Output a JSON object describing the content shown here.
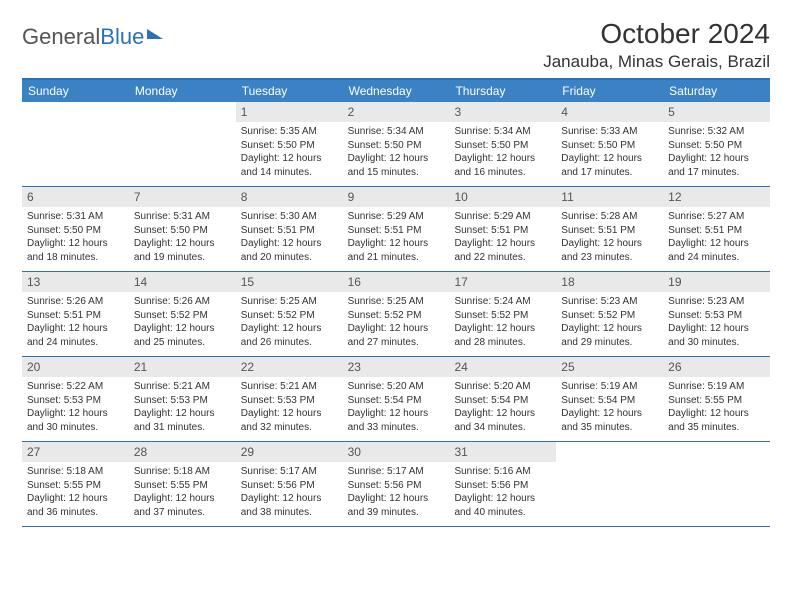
{
  "logo": {
    "part1": "General",
    "part2": "Blue"
  },
  "title": "October 2024",
  "location": "Janauba, Minas Gerais, Brazil",
  "colors": {
    "header_bg": "#3a82c4",
    "border": "#2a71b8",
    "daynum_bg": "#e9e9e9",
    "text": "#333333",
    "white": "#ffffff"
  },
  "weekdays": [
    "Sunday",
    "Monday",
    "Tuesday",
    "Wednesday",
    "Thursday",
    "Friday",
    "Saturday"
  ],
  "weeks": [
    [
      null,
      null,
      {
        "n": "1",
        "sr": "Sunrise: 5:35 AM",
        "ss": "Sunset: 5:50 PM",
        "dl": "Daylight: 12 hours and 14 minutes."
      },
      {
        "n": "2",
        "sr": "Sunrise: 5:34 AM",
        "ss": "Sunset: 5:50 PM",
        "dl": "Daylight: 12 hours and 15 minutes."
      },
      {
        "n": "3",
        "sr": "Sunrise: 5:34 AM",
        "ss": "Sunset: 5:50 PM",
        "dl": "Daylight: 12 hours and 16 minutes."
      },
      {
        "n": "4",
        "sr": "Sunrise: 5:33 AM",
        "ss": "Sunset: 5:50 PM",
        "dl": "Daylight: 12 hours and 17 minutes."
      },
      {
        "n": "5",
        "sr": "Sunrise: 5:32 AM",
        "ss": "Sunset: 5:50 PM",
        "dl": "Daylight: 12 hours and 17 minutes."
      }
    ],
    [
      {
        "n": "6",
        "sr": "Sunrise: 5:31 AM",
        "ss": "Sunset: 5:50 PM",
        "dl": "Daylight: 12 hours and 18 minutes."
      },
      {
        "n": "7",
        "sr": "Sunrise: 5:31 AM",
        "ss": "Sunset: 5:50 PM",
        "dl": "Daylight: 12 hours and 19 minutes."
      },
      {
        "n": "8",
        "sr": "Sunrise: 5:30 AM",
        "ss": "Sunset: 5:51 PM",
        "dl": "Daylight: 12 hours and 20 minutes."
      },
      {
        "n": "9",
        "sr": "Sunrise: 5:29 AM",
        "ss": "Sunset: 5:51 PM",
        "dl": "Daylight: 12 hours and 21 minutes."
      },
      {
        "n": "10",
        "sr": "Sunrise: 5:29 AM",
        "ss": "Sunset: 5:51 PM",
        "dl": "Daylight: 12 hours and 22 minutes."
      },
      {
        "n": "11",
        "sr": "Sunrise: 5:28 AM",
        "ss": "Sunset: 5:51 PM",
        "dl": "Daylight: 12 hours and 23 minutes."
      },
      {
        "n": "12",
        "sr": "Sunrise: 5:27 AM",
        "ss": "Sunset: 5:51 PM",
        "dl": "Daylight: 12 hours and 24 minutes."
      }
    ],
    [
      {
        "n": "13",
        "sr": "Sunrise: 5:26 AM",
        "ss": "Sunset: 5:51 PM",
        "dl": "Daylight: 12 hours and 24 minutes."
      },
      {
        "n": "14",
        "sr": "Sunrise: 5:26 AM",
        "ss": "Sunset: 5:52 PM",
        "dl": "Daylight: 12 hours and 25 minutes."
      },
      {
        "n": "15",
        "sr": "Sunrise: 5:25 AM",
        "ss": "Sunset: 5:52 PM",
        "dl": "Daylight: 12 hours and 26 minutes."
      },
      {
        "n": "16",
        "sr": "Sunrise: 5:25 AM",
        "ss": "Sunset: 5:52 PM",
        "dl": "Daylight: 12 hours and 27 minutes."
      },
      {
        "n": "17",
        "sr": "Sunrise: 5:24 AM",
        "ss": "Sunset: 5:52 PM",
        "dl": "Daylight: 12 hours and 28 minutes."
      },
      {
        "n": "18",
        "sr": "Sunrise: 5:23 AM",
        "ss": "Sunset: 5:52 PM",
        "dl": "Daylight: 12 hours and 29 minutes."
      },
      {
        "n": "19",
        "sr": "Sunrise: 5:23 AM",
        "ss": "Sunset: 5:53 PM",
        "dl": "Daylight: 12 hours and 30 minutes."
      }
    ],
    [
      {
        "n": "20",
        "sr": "Sunrise: 5:22 AM",
        "ss": "Sunset: 5:53 PM",
        "dl": "Daylight: 12 hours and 30 minutes."
      },
      {
        "n": "21",
        "sr": "Sunrise: 5:21 AM",
        "ss": "Sunset: 5:53 PM",
        "dl": "Daylight: 12 hours and 31 minutes."
      },
      {
        "n": "22",
        "sr": "Sunrise: 5:21 AM",
        "ss": "Sunset: 5:53 PM",
        "dl": "Daylight: 12 hours and 32 minutes."
      },
      {
        "n": "23",
        "sr": "Sunrise: 5:20 AM",
        "ss": "Sunset: 5:54 PM",
        "dl": "Daylight: 12 hours and 33 minutes."
      },
      {
        "n": "24",
        "sr": "Sunrise: 5:20 AM",
        "ss": "Sunset: 5:54 PM",
        "dl": "Daylight: 12 hours and 34 minutes."
      },
      {
        "n": "25",
        "sr": "Sunrise: 5:19 AM",
        "ss": "Sunset: 5:54 PM",
        "dl": "Daylight: 12 hours and 35 minutes."
      },
      {
        "n": "26",
        "sr": "Sunrise: 5:19 AM",
        "ss": "Sunset: 5:55 PM",
        "dl": "Daylight: 12 hours and 35 minutes."
      }
    ],
    [
      {
        "n": "27",
        "sr": "Sunrise: 5:18 AM",
        "ss": "Sunset: 5:55 PM",
        "dl": "Daylight: 12 hours and 36 minutes."
      },
      {
        "n": "28",
        "sr": "Sunrise: 5:18 AM",
        "ss": "Sunset: 5:55 PM",
        "dl": "Daylight: 12 hours and 37 minutes."
      },
      {
        "n": "29",
        "sr": "Sunrise: 5:17 AM",
        "ss": "Sunset: 5:56 PM",
        "dl": "Daylight: 12 hours and 38 minutes."
      },
      {
        "n": "30",
        "sr": "Sunrise: 5:17 AM",
        "ss": "Sunset: 5:56 PM",
        "dl": "Daylight: 12 hours and 39 minutes."
      },
      {
        "n": "31",
        "sr": "Sunrise: 5:16 AM",
        "ss": "Sunset: 5:56 PM",
        "dl": "Daylight: 12 hours and 40 minutes."
      },
      null,
      null
    ]
  ]
}
